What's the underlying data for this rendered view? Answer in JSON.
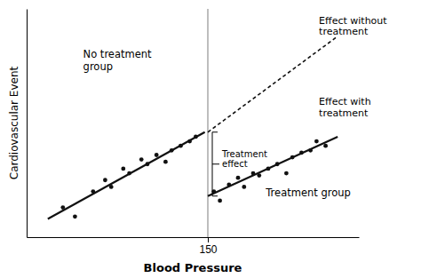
{
  "chart_data": {
    "type": "scatter",
    "xlabel": "Blood Pressure",
    "ylabel": "Cardiovascular Event",
    "xlim": [
      90,
      200
    ],
    "ylim": [
      0.0,
      1.0
    ],
    "xticks": [
      150
    ],
    "yticks": [],
    "tick_labels": "x",
    "grid": false,
    "cutoff": 150,
    "cutoff_color": "#888888",
    "series": [
      {
        "type": "scatter",
        "marker": "circle",
        "color": "#111111",
        "x": [
          102,
          106,
          112,
          116,
          118,
          122,
          124,
          128,
          130,
          133,
          136,
          138,
          141,
          144,
          146
        ],
        "values": [
          0.13,
          0.09,
          0.2,
          0.25,
          0.22,
          0.3,
          0.28,
          0.34,
          0.32,
          0.36,
          0.33,
          0.38,
          0.4,
          0.42,
          0.44
        ]
      },
      {
        "type": "scatter",
        "marker": "circle",
        "color": "#111111",
        "x": [
          152,
          154,
          157,
          160,
          162,
          165,
          167,
          170,
          173,
          176,
          178,
          181,
          184,
          186,
          189
        ],
        "values": [
          0.2,
          0.16,
          0.23,
          0.26,
          0.22,
          0.28,
          0.27,
          0.3,
          0.32,
          0.28,
          0.35,
          0.37,
          0.38,
          0.42,
          0.4
        ]
      },
      {
        "type": "line",
        "line_style": "solid",
        "color": "#111111",
        "x": [
          97,
          149
        ],
        "values": [
          0.08,
          0.46
        ]
      },
      {
        "type": "line",
        "line_style": "solid",
        "color": "#111111",
        "x": [
          150,
          193
        ],
        "values": [
          0.18,
          0.44
        ]
      },
      {
        "type": "line",
        "line_style": "dashed",
        "color": "#111111",
        "x": [
          150,
          193
        ],
        "values": [
          0.46,
          0.88
        ]
      }
    ],
    "annotations": [
      {
        "text": "No treatment\ngroup"
      },
      {
        "text": "Treatment group"
      },
      {
        "text": "Effect without\ntreatment"
      },
      {
        "text": "Effect with\ntreatment"
      },
      {
        "text": "Treatment\neffect"
      }
    ]
  }
}
